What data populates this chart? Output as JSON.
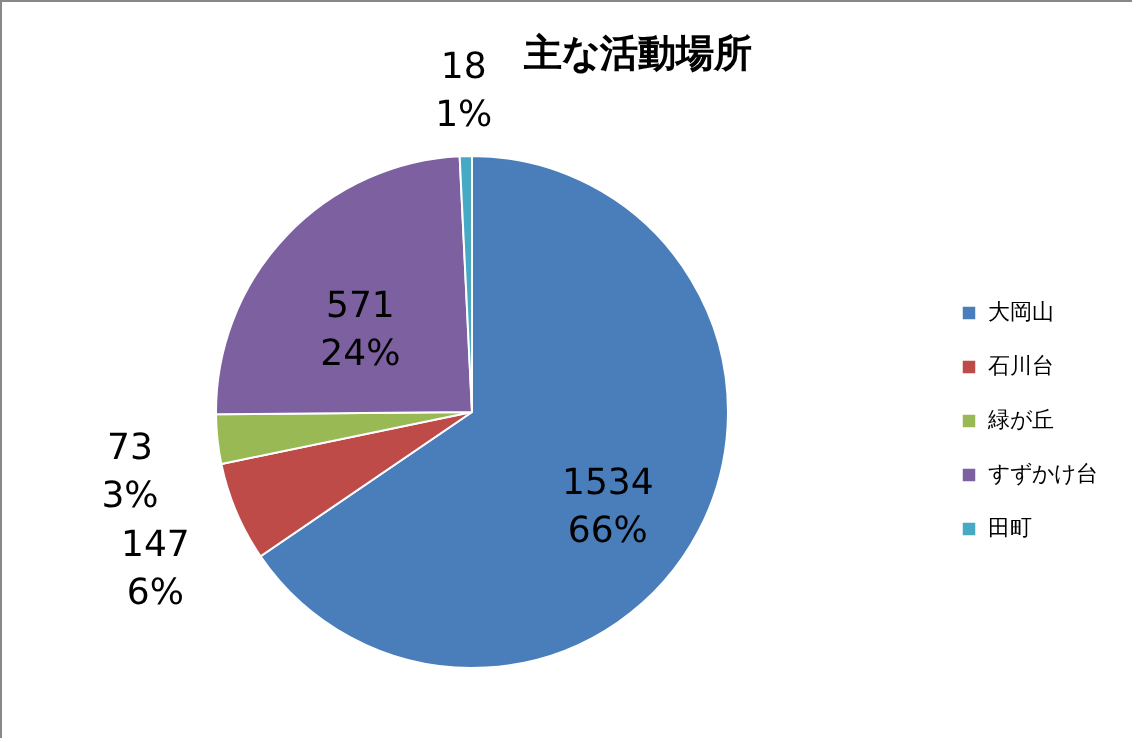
{
  "chart_data": {
    "type": "pie",
    "title": "主な活動場所",
    "categories": [
      "大岡山",
      "石川台",
      "緑が丘",
      "すずかけ台",
      "田町"
    ],
    "values": [
      1534,
      147,
      73,
      571,
      18
    ],
    "colors": [
      "#4a7ebb",
      "#be4b48",
      "#98b954",
      "#7d60a0",
      "#46aac5"
    ],
    "value_labels": [
      "1534\n66%",
      "147\n6%",
      "73\n3%",
      "571\n24%",
      "18\n1%"
    ],
    "legend": "right"
  }
}
